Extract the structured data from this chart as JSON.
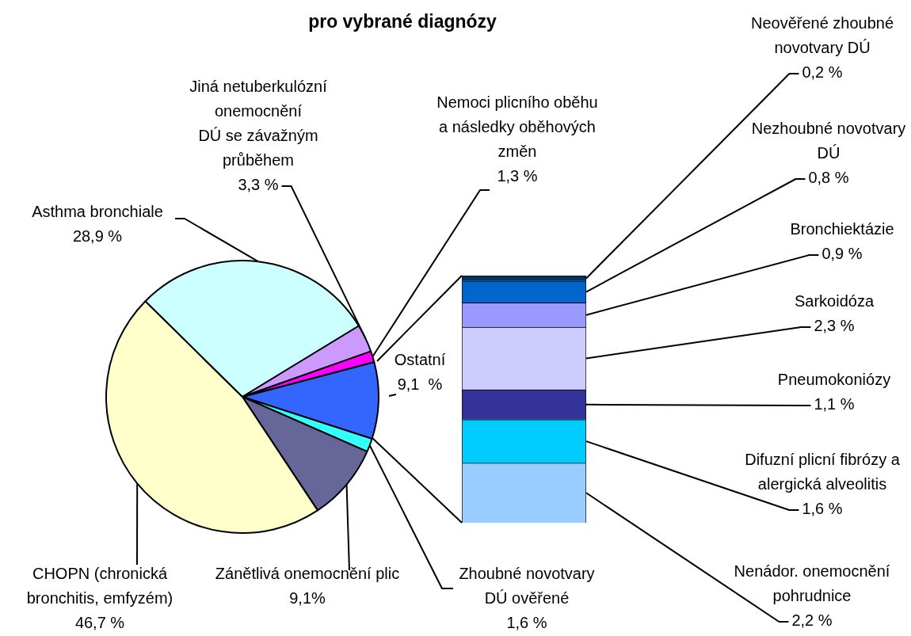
{
  "chart_data": [
    {
      "type": "pie",
      "title": "pro vybrané diagnózy",
      "legend": false,
      "categories": [
        "Ostatní",
        "Zhoubné novotvary DÚ ověřené",
        "Zánětlivá onemocnění plic",
        "CHOPN (chronická bronchitis, emfyzém)",
        "Asthma bronchiale",
        "Jiná netuberkulózní\nonemocnění\nDÚ se závažným\nprůběhem",
        "Nemoci plicního oběhu a následky oběhových změn"
      ],
      "values": [
        9.1,
        1.6,
        9.1,
        46.7,
        28.9,
        3.3,
        1.3
      ],
      "colors": [
        "#3366ff",
        "#33ffff",
        "#666699",
        "#ffffcc",
        "#ccffff",
        "#cc99ff",
        "#ff00ff"
      ],
      "value_labels": [
        "9,1  %",
        "1,6 %",
        "9,1%",
        "46,7 %",
        "28,9 %",
        "3,3 %",
        "1,3 %"
      ]
    },
    {
      "type": "bar",
      "stacked": true,
      "legend": false,
      "categories": [
        null
      ],
      "series": [
        {
          "name": "Nenádor. onemocnění pohrudnice",
          "color": "#99ccff",
          "values": [
            2.2
          ],
          "value_labels": [
            "2,2 %"
          ]
        },
        {
          "name": "Difuzní plicní fibrózy a alergická alveolitis",
          "color": "#00ccff",
          "values": [
            1.6
          ],
          "value_labels": [
            "1,6 %"
          ]
        },
        {
          "name": "Pneumokoniózy",
          "color": "#333399",
          "values": [
            1.1
          ],
          "value_labels": [
            "1,1 %"
          ]
        },
        {
          "name": "Sarkoidóza",
          "color": "#ccccff",
          "values": [
            2.3
          ],
          "value_labels": [
            "2,3 %"
          ]
        },
        {
          "name": "Bronchiektázie",
          "color": "#9999ff",
          "values": [
            0.9
          ],
          "value_labels": [
            "0,9 %"
          ]
        },
        {
          "name": "Nezhoubné novotvary\nDÚ",
          "color": "#0066cc",
          "values": [
            0.8
          ],
          "value_labels": [
            "0,8 %"
          ]
        },
        {
          "name": "Neověřené zhoubné novotvary DÚ",
          "color": "#003366",
          "values": [
            0.2
          ],
          "value_labels": [
            "0,2 %"
          ]
        }
      ]
    }
  ]
}
